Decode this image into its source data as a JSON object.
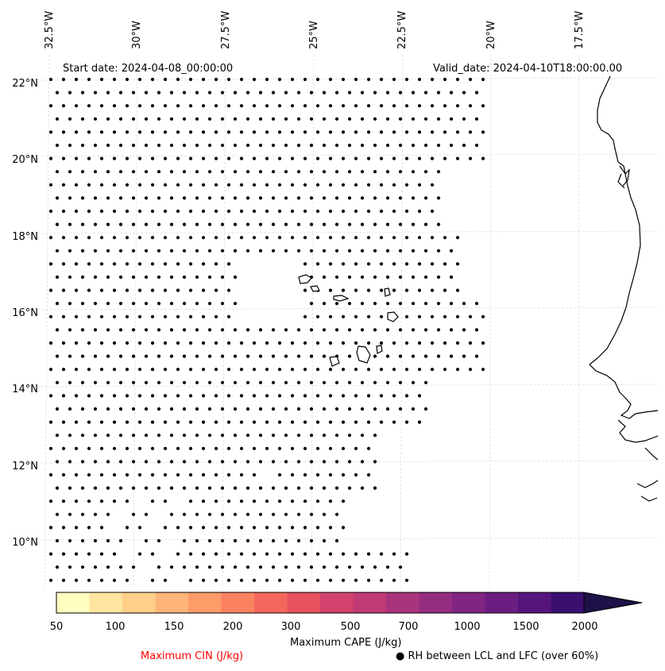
{
  "map": {
    "start_label": "Start date: 2024-04-08_00:00:00",
    "valid_label": "Valid_date: 2024-04-10T18:00:00.00",
    "lon_labels": [
      "32.5°W",
      "30°W",
      "27.5°W",
      "25°W",
      "22.5°W",
      "20°W",
      "17.5°W"
    ],
    "lat_labels": [
      "22°N",
      "20°N",
      "18°N",
      "16°N",
      "14°N",
      "12°N",
      "10°N"
    ],
    "dot_marker": "RH between LCL and LFC (over 60%)"
  },
  "colorbar": {
    "label": "Maximum CAPE (J/kg)",
    "ticks": [
      "50",
      "100",
      "150",
      "200",
      "300",
      "500",
      "700",
      "1000",
      "1500",
      "2000"
    ],
    "colors": [
      "#fdfec0",
      "#fee6a0",
      "#fecf88",
      "#feb577",
      "#fd9c68",
      "#fb8260",
      "#f5675c",
      "#e7525f",
      "#d3426d",
      "#c03a76",
      "#aa337d",
      "#952c80",
      "#802582",
      "#6c1d81",
      "#56147d",
      "#3b0f70",
      "#1d1147"
    ]
  },
  "legend": {
    "cin_label": "Maximum CIN (J/kg)",
    "cin_color": "#ff0000",
    "rh_label": "● RH between LCL and LFC (over 60%)"
  }
}
